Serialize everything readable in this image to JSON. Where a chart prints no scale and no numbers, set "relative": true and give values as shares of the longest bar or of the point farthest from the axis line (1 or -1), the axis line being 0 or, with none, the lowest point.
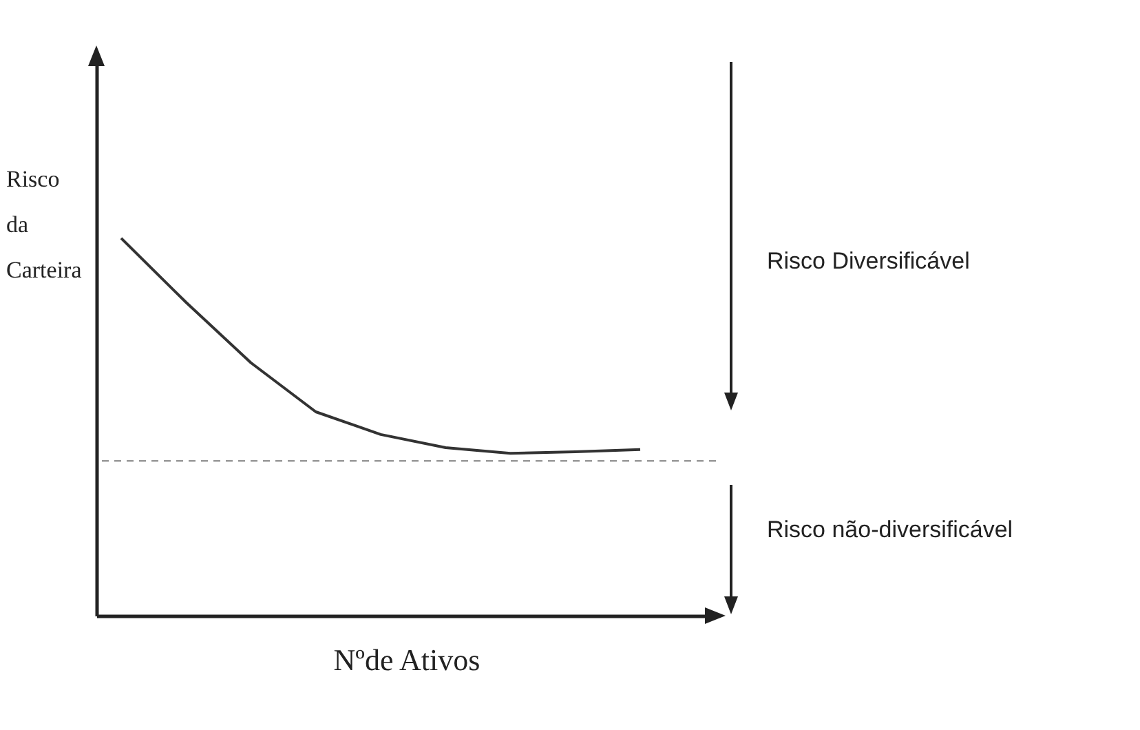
{
  "chart_data": {
    "type": "line",
    "relative": true,
    "xlabel": "Nºde Ativos",
    "ylabel": "Risco da Carteira",
    "categories": [
      null,
      null,
      null,
      null,
      null,
      null,
      null,
      null,
      null
    ],
    "series": [
      {
        "color": "#333333",
        "values": [
          1,
          0.83,
          0.67,
          0.54,
          0.48,
          0.445,
          0.43,
          0.434,
          0.44
        ]
      }
    ],
    "ref_lines": [
      {
        "axis": "y",
        "value": 0.41,
        "line_style": "dashed",
        "color": "#999999"
      }
    ],
    "annotations": [
      "Risco Diversificável",
      "Risco não-diversificável"
    ],
    "marker": "none",
    "line_style": "solid",
    "grid": false
  }
}
